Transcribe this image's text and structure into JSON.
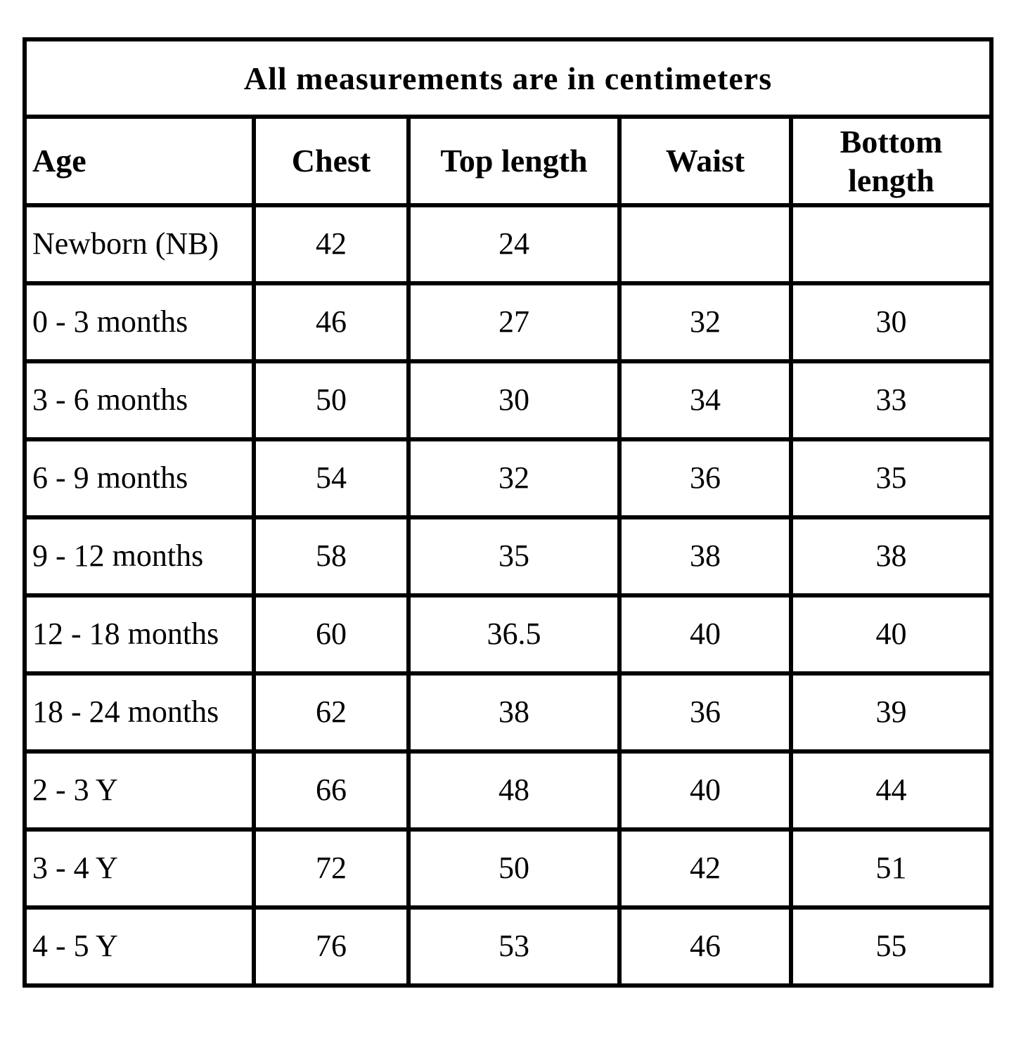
{
  "table": {
    "title": "All measurements are in centimeters",
    "columns": [
      "Age",
      "Chest",
      "Top length",
      "Waist",
      "Bottom length"
    ],
    "rows": [
      [
        "Newborn (NB)",
        "42",
        "24",
        "",
        ""
      ],
      [
        "0 - 3 months",
        "46",
        "27",
        "32",
        "30"
      ],
      [
        "3 - 6 months",
        "50",
        "30",
        "34",
        "33"
      ],
      [
        "6 - 9 months",
        "54",
        "32",
        "36",
        "35"
      ],
      [
        "9 - 12 months",
        "58",
        "35",
        "38",
        "38"
      ],
      [
        "12 - 18 months",
        "60",
        "36.5",
        "40",
        "40"
      ],
      [
        "18 - 24 months",
        "62",
        "38",
        "36",
        "39"
      ],
      [
        "2 - 3 Y",
        "66",
        "48",
        "40",
        "44"
      ],
      [
        "3 - 4 Y",
        "72",
        "50",
        "42",
        "51"
      ],
      [
        "4 - 5 Y",
        "76",
        "53",
        "46",
        "55"
      ]
    ]
  },
  "colors": {
    "border": "#000000",
    "background": "#ffffff",
    "text": "#000000"
  }
}
